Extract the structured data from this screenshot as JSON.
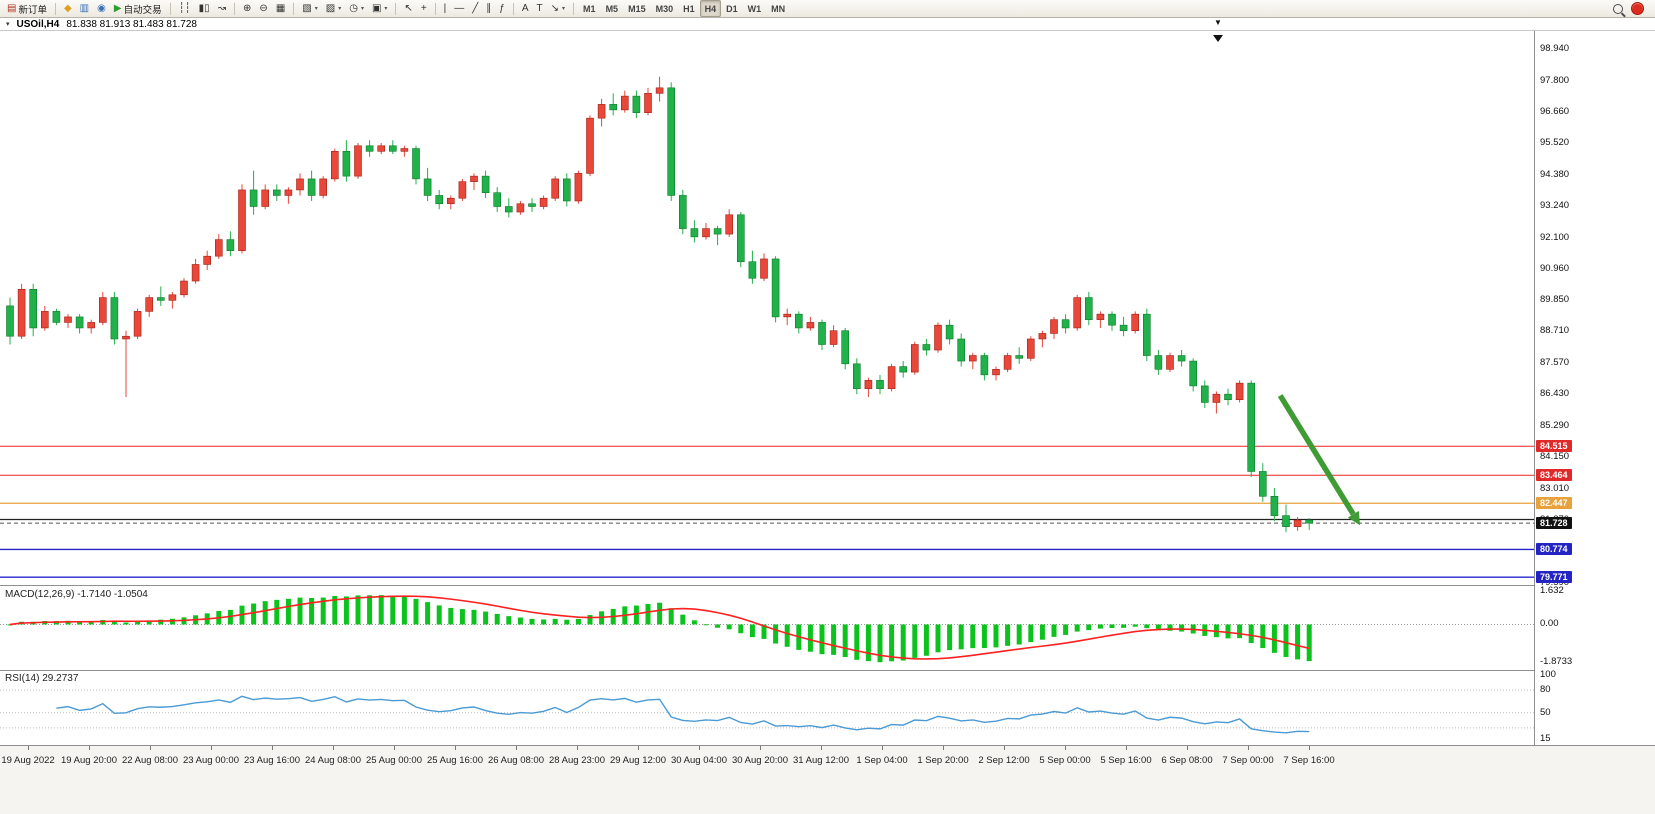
{
  "icons": {
    "chart_menu": "▾",
    "shift_marker": "▼",
    "caret": "▾"
  },
  "toolbar": {
    "button_groups": [
      [
        {
          "name": "new-order-button",
          "glyph": "▤",
          "glyph_color": "#b03020",
          "label": "新订单"
        }
      ],
      [
        {
          "name": "metaeditor-button",
          "glyph": "◆",
          "glyph_color": "#dda020"
        },
        {
          "name": "terminal-button",
          "glyph": "▥",
          "glyph_color": "#3a6fb5"
        },
        {
          "name": "strategy-tester-button",
          "glyph": "◉",
          "glyph_color": "#3a6fb5"
        },
        {
          "name": "autotrading-button",
          "glyph": "▶",
          "glyph_color": "#2f9e2f",
          "label": "自动交易"
        }
      ],
      [
        {
          "name": "bar-chart-button",
          "glyph": "┆┆"
        },
        {
          "name": "candlestick-chart-button",
          "glyph": "▮▯"
        },
        {
          "name": "line-chart-button",
          "glyph": "↝"
        }
      ],
      [
        {
          "name": "zoom-in-button",
          "glyph": "⊕"
        },
        {
          "name": "zoom-out-button",
          "glyph": "⊖"
        },
        {
          "name": "tile-windows-button",
          "glyph": "▦"
        }
      ],
      [
        {
          "name": "new-chart-button",
          "glyph": "▧",
          "caret": true
        },
        {
          "name": "profiles-button",
          "glyph": "▨",
          "caret": true
        },
        {
          "name": "periods-menu-button",
          "glyph": "◷",
          "caret": true
        },
        {
          "name": "templates-button",
          "glyph": "▣",
          "caret": true
        }
      ],
      [
        {
          "name": "cursor-button",
          "glyph": "↖"
        },
        {
          "name": "crosshair-button",
          "glyph": "+"
        }
      ],
      [
        {
          "name": "vertical-line-button",
          "glyph": "|"
        },
        {
          "name": "horizontal-line-button",
          "glyph": "—"
        },
        {
          "name": "trendline-button",
          "glyph": "╱"
        },
        {
          "name": "equidistant-channel-button",
          "glyph": "∥"
        },
        {
          "name": "fibonacci-button",
          "glyph": "ƒ"
        }
      ],
      [
        {
          "name": "text-button",
          "glyph": "A"
        },
        {
          "name": "text-label-button",
          "glyph": "T"
        },
        {
          "name": "arrows-button",
          "glyph": "↘",
          "caret": true
        }
      ]
    ],
    "timeframes": {
      "items": [
        "M1",
        "M5",
        "M15",
        "M30",
        "H1",
        "H4",
        "D1",
        "W1",
        "MN"
      ],
      "active": "H4"
    },
    "right_icons": [
      {
        "name": "search-icon"
      },
      {
        "name": "notification-icon"
      }
    ]
  },
  "chart": {
    "title": "USOil,H4",
    "ohlc": "81.838 81.913 81.483 81.728"
  },
  "chart_data": {
    "type": "candlestick",
    "symbol": "USOil",
    "timeframe": "H4",
    "last": {
      "open": "81.838",
      "high": "81.913",
      "low": "81.483",
      "close": "81.728"
    },
    "price_axis": {
      "max": 99.45,
      "min": 79.45,
      "labels": [
        [
          "98.940",
          98.94
        ],
        [
          "97.800",
          97.8
        ],
        [
          "96.660",
          96.66
        ],
        [
          "95.520",
          95.52
        ],
        [
          "94.380",
          94.38
        ],
        [
          "93.240",
          93.24
        ],
        [
          "92.100",
          92.1
        ],
        [
          "90.960",
          90.96
        ],
        [
          "89.850",
          89.85
        ],
        [
          "88.710",
          88.71
        ],
        [
          "87.570",
          87.57
        ],
        [
          "86.430",
          86.43
        ],
        [
          "85.290",
          85.29
        ],
        [
          "84.150",
          84.15
        ],
        [
          "83.010",
          83.01
        ],
        [
          "81.870",
          81.87
        ],
        [
          "80.730",
          80.73
        ],
        [
          "79.590",
          79.59
        ]
      ]
    },
    "time_axis": {
      "labels": [
        "19 Aug 2022",
        "19 Aug 20:00",
        "22 Aug 08:00",
        "23 Aug 00:00",
        "23 Aug 16:00",
        "24 Aug 08:00",
        "25 Aug 00:00",
        "25 Aug 16:00",
        "26 Aug 08:00",
        "28 Aug 23:00",
        "29 Aug 12:00",
        "30 Aug 04:00",
        "30 Aug 20:00",
        "31 Aug 12:00",
        "1 Sep 04:00",
        "1 Sep 20:00",
        "2 Sep 12:00",
        "5 Sep 00:00",
        "5 Sep 16:00",
        "6 Sep 08:00",
        "7 Sep 00:00",
        "7 Sep 16:00"
      ]
    },
    "candles": [
      [
        89.6,
        89.9,
        88.2,
        88.5
      ],
      [
        88.5,
        90.4,
        88.4,
        90.2
      ],
      [
        90.2,
        90.4,
        88.5,
        88.8
      ],
      [
        88.8,
        89.6,
        88.7,
        89.4
      ],
      [
        89.4,
        89.5,
        88.9,
        89.0
      ],
      [
        89.0,
        89.3,
        88.8,
        89.2
      ],
      [
        89.2,
        89.3,
        88.6,
        88.8
      ],
      [
        88.8,
        89.1,
        88.6,
        89.0
      ],
      [
        89.0,
        90.1,
        88.9,
        89.9
      ],
      [
        89.9,
        90.1,
        88.2,
        88.4
      ],
      [
        88.4,
        88.7,
        86.3,
        88.5
      ],
      [
        88.5,
        89.5,
        88.4,
        89.4
      ],
      [
        89.4,
        90.0,
        89.2,
        89.9
      ],
      [
        89.9,
        90.3,
        89.6,
        89.8
      ],
      [
        89.8,
        90.1,
        89.5,
        90.0
      ],
      [
        90.0,
        90.6,
        89.9,
        90.5
      ],
      [
        90.5,
        91.3,
        90.4,
        91.1
      ],
      [
        91.1,
        91.6,
        90.9,
        91.4
      ],
      [
        91.4,
        92.2,
        91.3,
        92.0
      ],
      [
        92.0,
        92.3,
        91.4,
        91.6
      ],
      [
        91.6,
        94.0,
        91.5,
        93.8
      ],
      [
        93.8,
        94.5,
        92.9,
        93.2
      ],
      [
        93.2,
        94.0,
        93.1,
        93.8
      ],
      [
        93.8,
        94.0,
        93.4,
        93.6
      ],
      [
        93.6,
        93.9,
        93.3,
        93.8
      ],
      [
        93.8,
        94.4,
        93.6,
        94.2
      ],
      [
        94.2,
        94.5,
        93.4,
        93.6
      ],
      [
        93.6,
        94.3,
        93.5,
        94.2
      ],
      [
        94.2,
        95.3,
        94.1,
        95.2
      ],
      [
        95.2,
        95.6,
        94.1,
        94.3
      ],
      [
        94.3,
        95.5,
        94.2,
        95.4
      ],
      [
        95.4,
        95.6,
        95.0,
        95.2
      ],
      [
        95.2,
        95.5,
        95.1,
        95.4
      ],
      [
        95.4,
        95.6,
        95.1,
        95.2
      ],
      [
        95.2,
        95.4,
        95.0,
        95.3
      ],
      [
        95.3,
        95.4,
        94.0,
        94.2
      ],
      [
        94.2,
        94.6,
        93.4,
        93.6
      ],
      [
        93.6,
        93.8,
        93.1,
        93.3
      ],
      [
        93.3,
        93.6,
        93.1,
        93.5
      ],
      [
        93.5,
        94.2,
        93.4,
        94.1
      ],
      [
        94.1,
        94.4,
        93.8,
        94.3
      ],
      [
        94.3,
        94.5,
        93.5,
        93.7
      ],
      [
        93.7,
        93.9,
        93.0,
        93.2
      ],
      [
        93.2,
        93.5,
        92.8,
        93.0
      ],
      [
        93.0,
        93.4,
        92.9,
        93.3
      ],
      [
        93.3,
        93.5,
        93.0,
        93.2
      ],
      [
        93.2,
        93.6,
        93.1,
        93.5
      ],
      [
        93.5,
        94.3,
        93.4,
        94.2
      ],
      [
        94.2,
        94.4,
        93.2,
        93.4
      ],
      [
        93.4,
        94.5,
        93.3,
        94.4
      ],
      [
        94.4,
        96.5,
        94.3,
        96.4
      ],
      [
        96.4,
        97.1,
        96.1,
        96.9
      ],
      [
        96.9,
        97.3,
        96.5,
        96.7
      ],
      [
        96.7,
        97.4,
        96.6,
        97.2
      ],
      [
        97.2,
        97.4,
        96.4,
        96.6
      ],
      [
        96.6,
        97.5,
        96.5,
        97.3
      ],
      [
        97.3,
        97.9,
        97.0,
        97.5
      ],
      [
        97.5,
        97.7,
        93.4,
        93.6
      ],
      [
        93.6,
        93.8,
        92.2,
        92.4
      ],
      [
        92.4,
        92.7,
        91.9,
        92.1
      ],
      [
        92.1,
        92.6,
        92.0,
        92.4
      ],
      [
        92.4,
        92.5,
        91.8,
        92.2
      ],
      [
        92.2,
        93.1,
        92.1,
        92.9
      ],
      [
        92.9,
        93.0,
        91.0,
        91.2
      ],
      [
        91.2,
        91.6,
        90.4,
        90.6
      ],
      [
        90.6,
        91.5,
        90.5,
        91.3
      ],
      [
        91.3,
        91.4,
        89.0,
        89.2
      ],
      [
        89.2,
        89.5,
        88.9,
        89.3
      ],
      [
        89.3,
        89.4,
        88.6,
        88.8
      ],
      [
        88.8,
        89.2,
        88.7,
        89.0
      ],
      [
        89.0,
        89.1,
        88.0,
        88.2
      ],
      [
        88.2,
        88.9,
        88.1,
        88.7
      ],
      [
        88.7,
        88.8,
        87.3,
        87.5
      ],
      [
        87.5,
        87.7,
        86.4,
        86.6
      ],
      [
        86.6,
        87.0,
        86.3,
        86.9
      ],
      [
        86.9,
        87.1,
        86.4,
        86.6
      ],
      [
        86.6,
        87.5,
        86.5,
        87.4
      ],
      [
        87.4,
        87.6,
        87.0,
        87.2
      ],
      [
        87.2,
        88.3,
        87.1,
        88.2
      ],
      [
        88.2,
        88.4,
        87.8,
        88.0
      ],
      [
        88.0,
        89.0,
        87.9,
        88.9
      ],
      [
        88.9,
        89.1,
        88.2,
        88.4
      ],
      [
        88.4,
        88.6,
        87.4,
        87.6
      ],
      [
        87.6,
        87.9,
        87.3,
        87.8
      ],
      [
        87.8,
        87.9,
        86.9,
        87.1
      ],
      [
        87.1,
        87.4,
        86.9,
        87.3
      ],
      [
        87.3,
        87.9,
        87.2,
        87.8
      ],
      [
        87.8,
        88.1,
        87.5,
        87.7
      ],
      [
        87.7,
        88.5,
        87.6,
        88.4
      ],
      [
        88.4,
        88.7,
        88.1,
        88.6
      ],
      [
        88.6,
        89.2,
        88.4,
        89.1
      ],
      [
        89.1,
        89.3,
        88.6,
        88.8
      ],
      [
        88.8,
        90.0,
        88.7,
        89.9
      ],
      [
        89.9,
        90.1,
        88.9,
        89.1
      ],
      [
        89.1,
        89.4,
        88.8,
        89.3
      ],
      [
        89.3,
        89.4,
        88.7,
        88.9
      ],
      [
        88.9,
        89.2,
        88.5,
        88.7
      ],
      [
        88.7,
        89.4,
        88.6,
        89.3
      ],
      [
        89.3,
        89.5,
        87.6,
        87.8
      ],
      [
        87.8,
        88.0,
        87.1,
        87.3
      ],
      [
        87.3,
        87.9,
        87.2,
        87.8
      ],
      [
        87.8,
        88.0,
        87.4,
        87.6
      ],
      [
        87.6,
        87.7,
        86.5,
        86.7
      ],
      [
        86.7,
        86.9,
        85.9,
        86.1
      ],
      [
        86.1,
        86.5,
        85.7,
        86.4
      ],
      [
        86.4,
        86.6,
        86.0,
        86.2
      ],
      [
        86.2,
        86.9,
        86.1,
        86.8
      ],
      [
        86.8,
        86.9,
        83.4,
        83.6
      ],
      [
        83.6,
        83.9,
        82.5,
        82.7
      ],
      [
        82.7,
        83.0,
        81.8,
        82.0
      ],
      [
        82.0,
        82.4,
        81.4,
        81.6
      ],
      [
        81.6,
        81.95,
        81.45,
        81.84
      ],
      [
        81.838,
        81.913,
        81.483,
        81.728
      ]
    ],
    "hlines": [
      {
        "price": 84.515,
        "label": "84.515",
        "color": "#ee2222",
        "tag_bg": "#e02a2a",
        "width": 1
      },
      {
        "price": 83.464,
        "label": "83.464",
        "color": "#ee2222",
        "tag_bg": "#e02a2a",
        "width": 1
      },
      {
        "price": 82.447,
        "label": "82.447",
        "color": "#e9a23b",
        "tag_bg": "#e9a23b",
        "width": 1.2
      },
      {
        "price": 81.86,
        "label": null,
        "color": "#222222",
        "width": 1.2
      },
      {
        "price": 81.728,
        "label": "81.728",
        "color": "#555555",
        "tag_bg": "#111111",
        "width": 1,
        "dashed": true
      },
      {
        "price": 80.774,
        "label": "80.774",
        "color": "#2626cd",
        "tag_bg": "#2424c4",
        "width": 1.4
      },
      {
        "price": 79.771,
        "label": "79.771",
        "color": "#2626cd",
        "tag_bg": "#2424c4",
        "width": 1.4
      }
    ],
    "arrow": {
      "from_bar": 109.5,
      "from_price": 86.35,
      "to_bar": 115.8,
      "to_price": 82.05,
      "color": "#3f9c35"
    },
    "macd": {
      "label": "MACD(12,26,9) -1.7140 -1.0504",
      "fast": 12,
      "slow": 26,
      "signal": 9,
      "scale_max": 1.75,
      "scale_min": -2.1,
      "axis_labels": [
        [
          "1.632",
          1.632
        ],
        [
          "0.00",
          0
        ],
        [
          "-1.8733",
          -1.8733
        ]
      ]
    },
    "rsi": {
      "label": "RSI(14) 29.2737",
      "period": 14,
      "scale_max": 100,
      "scale_min": 10,
      "levels": [
        80,
        50,
        30
      ],
      "axis_labels": [
        [
          "100",
          100
        ],
        [
          "80",
          80
        ],
        [
          "50",
          50
        ],
        [
          "15",
          15
        ]
      ]
    },
    "colors": {
      "up_fill": "#e8473a",
      "up_stroke": "#a02015",
      "down_fill": "#21b14a",
      "down_stroke": "#0d7a2a",
      "macd_bar": "#0cc21d",
      "macd_signal": "#ff2020",
      "rsi_line": "#4a9ad4",
      "level_dot": "#bbbbbb"
    }
  }
}
